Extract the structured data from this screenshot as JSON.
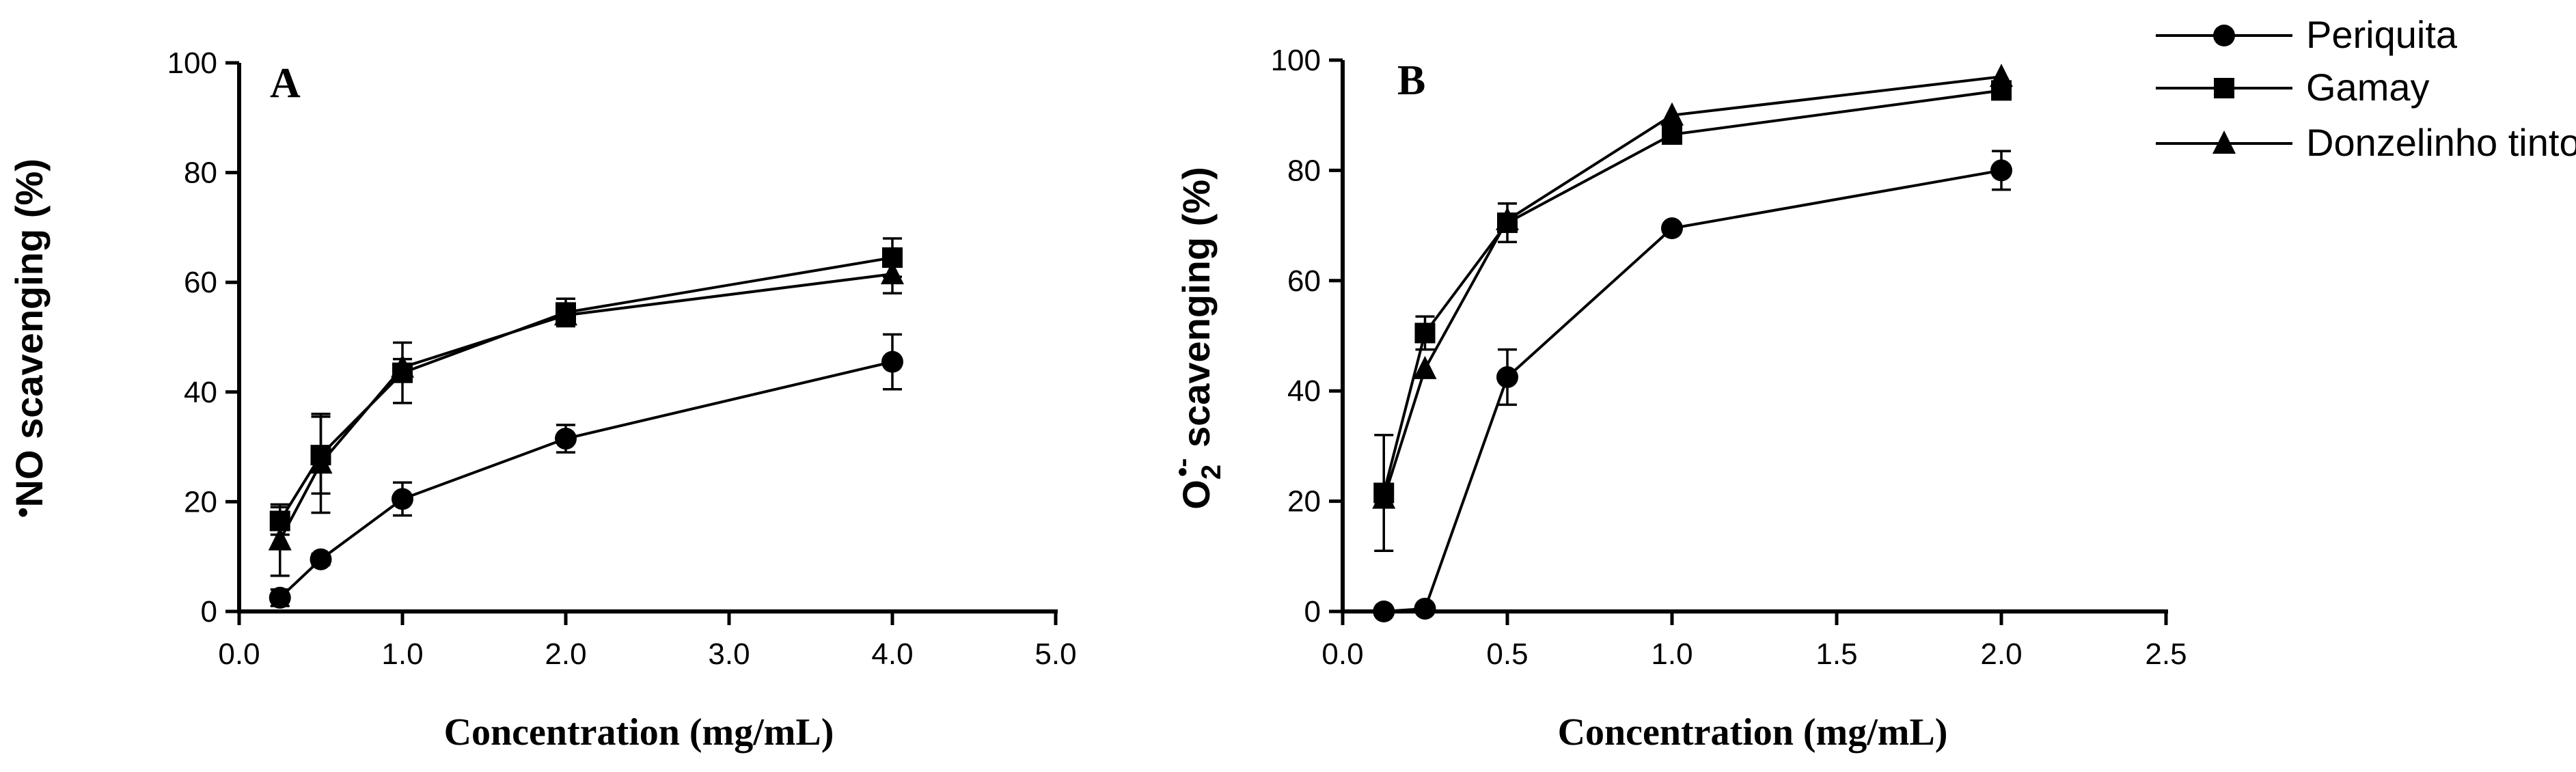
{
  "legend": {
    "entries": [
      {
        "name": "Periquita",
        "marker": "circle"
      },
      {
        "name": "Gamay",
        "marker": "square"
      },
      {
        "name": "Donzelinho tinto",
        "marker": "triangle"
      }
    ]
  },
  "chart_data": [
    {
      "type": "line",
      "panel_label": "A",
      "xlabel": "Concentration (mg/mL)",
      "ylabel_dot": "•",
      "ylabel": "NO scavenging (%)",
      "xlim": [
        0,
        5
      ],
      "ylim": [
        0,
        100
      ],
      "xticks": [
        0,
        1,
        2,
        3,
        4,
        5
      ],
      "xtick_labels": [
        "0.0",
        "1.0",
        "2.0",
        "3.0",
        "4.0",
        "5.0"
      ],
      "yticks": [
        0,
        20,
        40,
        60,
        80,
        100
      ],
      "ytick_labels": [
        "0",
        "20",
        "40",
        "60",
        "80",
        "100"
      ],
      "series": [
        {
          "name": "Periquita",
          "marker": "circle",
          "x": [
            0.25,
            0.5,
            1,
            2,
            4
          ],
          "values": [
            2.5,
            9.5,
            20.5,
            31.5,
            45.5
          ],
          "errors": [
            1.5,
            1.0,
            3.0,
            2.5,
            5.0
          ]
        },
        {
          "name": "Gamay",
          "marker": "square",
          "x": [
            0.25,
            0.5,
            1,
            2,
            4
          ],
          "values": [
            16.5,
            28.5,
            43.5,
            54.5,
            64.5
          ],
          "errors": [
            2.5,
            7.0,
            5.5,
            2.5,
            3.5
          ]
        },
        {
          "name": "Donzelinho tinto",
          "marker": "triangle",
          "x": [
            0.25,
            0.5,
            1,
            2,
            4
          ],
          "values": [
            13,
            27,
            44.5,
            54,
            61.5
          ],
          "errors": [
            6.5,
            9.0,
            1.5,
            1.5,
            3.5
          ]
        }
      ]
    },
    {
      "type": "line",
      "panel_label": "B",
      "xlabel": "Concentration (mg/mL)",
      "ylabel_base": "O",
      "ylabel_sub": "2",
      "ylabel_sup": "•-",
      "ylabel_rest": " scavenging (%)",
      "xlim": [
        0,
        2.5
      ],
      "ylim": [
        0,
        100
      ],
      "xticks": [
        0,
        0.5,
        1,
        1.5,
        2,
        2.5
      ],
      "xtick_labels": [
        "0.0",
        "0.5",
        "1.0",
        "1.5",
        "2.0",
        "2.5"
      ],
      "yticks": [
        0,
        20,
        40,
        60,
        80,
        100
      ],
      "ytick_labels": [
        "0",
        "20",
        "40",
        "60",
        "80",
        "100"
      ],
      "series": [
        {
          "name": "Periquita",
          "marker": "circle",
          "x": [
            0.125,
            0.25,
            0.5,
            1,
            2
          ],
          "values": [
            0,
            0.5,
            42.5,
            69.5,
            80
          ],
          "errors": [
            0,
            0,
            5,
            0,
            3.5
          ]
        },
        {
          "name": "Gamay",
          "marker": "square",
          "x": [
            0.125,
            0.25,
            0.5,
            1,
            2
          ],
          "values": [
            21.5,
            50.5,
            70.5,
            86.5,
            94.5
          ],
          "errors": [
            10.5,
            3.0,
            3.5,
            0,
            0
          ]
        },
        {
          "name": "Donzelinho tinto",
          "marker": "triangle",
          "x": [
            0.125,
            0.25,
            0.5,
            1,
            2
          ],
          "values": [
            20.5,
            44,
            71,
            90,
            97
          ],
          "errors": [
            0,
            0,
            0,
            0,
            0
          ]
        }
      ]
    }
  ]
}
